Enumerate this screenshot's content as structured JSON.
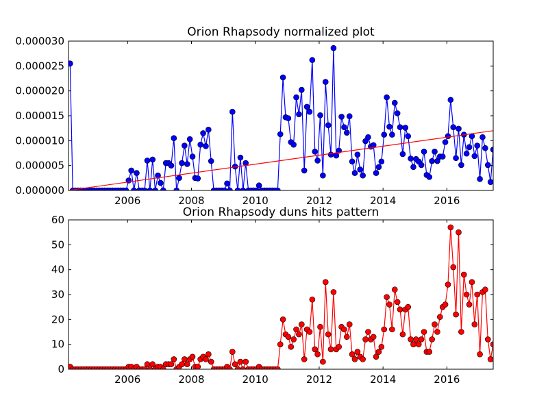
{
  "chart_data": [
    {
      "type": "line",
      "title": "Orion Rhapsody normalized plot",
      "xlabel": "",
      "ylabel": "",
      "xlim": [
        2004.15,
        2017.45
      ],
      "ylim": [
        0,
        3e-05
      ],
      "xtick_values": [
        2006,
        2008,
        2010,
        2012,
        2014,
        2016
      ],
      "ytick_values": [
        0,
        5e-06,
        1e-05,
        1.5e-05,
        2e-05,
        2.5e-05,
        3e-05
      ],
      "xtick_labels": [
        "2006",
        "2008",
        "2010",
        "2012",
        "2014",
        "2016"
      ],
      "ytick_labels": [
        "0.000000",
        "0.000005",
        "0.000010",
        "0.000015",
        "0.000020",
        "0.000025",
        "0.000030"
      ],
      "grid": false,
      "series": [
        {
          "color": "#0000ff",
          "marker": "circle",
          "values": [
            2.55e-05,
            0,
            0,
            0,
            0,
            0,
            0,
            0,
            0,
            0,
            0,
            0,
            0,
            0,
            0,
            0,
            0,
            0,
            0,
            0,
            0,
            0,
            2e-06,
            4e-06,
            0,
            3.5e-06,
            0,
            0,
            0,
            6e-06,
            0,
            6.2e-06,
            0,
            3e-06,
            1.5e-06,
            0,
            5.5e-06,
            5.5e-06,
            5e-06,
            1.05e-05,
            0,
            2.5e-06,
            5.5e-06,
            9e-06,
            5.3e-06,
            1.03e-05,
            6.8e-06,
            2.5e-06,
            2.4e-06,
            9.2e-06,
            1.15e-05,
            8.9e-06,
            1.22e-05,
            5.9e-06,
            0,
            0,
            0,
            0,
            0,
            1.4e-06,
            0,
            1.58e-05,
            4.8e-06,
            0,
            6.6e-06,
            0,
            5.5e-06,
            0,
            0,
            0,
            0,
            1e-06,
            0,
            0,
            0,
            0,
            0,
            0,
            0,
            1.13e-05,
            2.27e-05,
            1.47e-05,
            1.45e-05,
            9.7e-06,
            9.2e-06,
            1.87e-05,
            1.53e-05,
            2.02e-05,
            4e-06,
            1.68e-05,
            1.58e-05,
            2.62e-05,
            7.8e-06,
            6e-06,
            1.51e-05,
            3e-06,
            2.18e-05,
            1.31e-05,
            7.2e-06,
            2.86e-05,
            7e-06,
            8e-06,
            1.48e-05,
            1.27e-05,
            1.16e-05,
            1.49e-05,
            5.8e-06,
            3.5e-06,
            7.2e-06,
            4.2e-06,
            3e-06,
            9.9e-06,
            1.07e-05,
            8.8e-06,
            9.1e-06,
            3.5e-06,
            4.7e-06,
            5.8e-06,
            1.12e-05,
            1.87e-05,
            1.28e-05,
            1.12e-05,
            1.76e-05,
            1.55e-05,
            1.27e-05,
            7.3e-06,
            1.26e-05,
            1.09e-05,
            6.4e-06,
            4.7e-06,
            6.3e-06,
            5.8e-06,
            5.1e-06,
            7.8e-06,
            3.1e-06,
            2.7e-06,
            5.9e-06,
            7.8e-06,
            5.9e-06,
            6.8e-06,
            6.8e-06,
            9.7e-06,
            1.09e-05,
            1.82e-05,
            1.27e-05,
            6.5e-06,
            1.24e-05,
            5.1e-06,
            1.12e-05,
            7.4e-06,
            8.7e-06,
            1.09e-05,
            6.9e-06,
            9e-06,
            2.3e-06,
            1.07e-05,
            8.5e-06,
            5.1e-06,
            1.7e-06,
            8.2e-06
          ]
        },
        {
          "color": "#ff0000",
          "marker": "none",
          "fit_line_x": [
            2004.15,
            2017.45
          ],
          "fit_line_y": [
            0,
            1.2e-05
          ]
        }
      ]
    },
    {
      "type": "line",
      "title": "Orion Rhapsody duns hits pattern",
      "xlabel": "",
      "ylabel": "",
      "xlim": [
        2004.15,
        2017.45
      ],
      "ylim": [
        0,
        60
      ],
      "xtick_values": [
        2006,
        2008,
        2010,
        2012,
        2014,
        2016
      ],
      "ytick_values": [
        0,
        10,
        20,
        30,
        40,
        50,
        60
      ],
      "xtick_labels": [
        "2006",
        "2008",
        "2010",
        "2012",
        "2014",
        "2016"
      ],
      "ytick_labels": [
        "0",
        "10",
        "20",
        "30",
        "40",
        "50",
        "60"
      ],
      "grid": false,
      "series": [
        {
          "color": "#ff0000",
          "marker": "circle",
          "values": [
            1,
            0,
            0,
            0,
            0,
            0,
            0,
            0,
            0,
            0,
            0,
            0,
            0,
            0,
            0,
            0,
            0,
            0,
            0,
            0,
            0,
            0,
            1,
            1,
            0,
            1,
            0,
            0,
            0,
            2,
            0,
            2,
            0,
            1,
            1,
            0,
            2,
            2,
            2,
            4,
            0,
            1,
            2,
            4,
            2,
            4,
            5,
            1,
            1,
            4,
            5,
            4,
            6,
            3,
            0,
            0,
            0,
            0,
            0,
            1,
            0,
            7,
            2,
            0,
            3,
            0,
            3,
            0,
            0,
            0,
            0,
            1,
            0,
            0,
            0,
            0,
            0,
            0,
            0,
            10,
            20,
            14,
            13,
            9,
            12,
            16,
            14,
            18,
            4,
            16,
            15,
            28,
            8,
            6,
            17,
            3,
            35,
            14,
            8,
            31,
            8,
            9,
            17,
            16,
            13,
            18,
            6,
            4,
            7,
            5,
            4,
            12,
            15,
            12,
            13,
            5,
            7,
            9,
            16,
            29,
            26,
            16,
            32,
            27,
            24,
            14,
            24,
            25,
            12,
            10,
            12,
            10,
            12,
            15,
            7,
            7,
            12,
            18,
            15,
            21,
            25,
            26,
            34,
            57,
            41,
            22,
            55,
            15,
            38,
            30,
            26,
            35,
            18,
            30,
            6,
            31,
            32,
            12,
            4,
            10
          ]
        }
      ]
    }
  ]
}
